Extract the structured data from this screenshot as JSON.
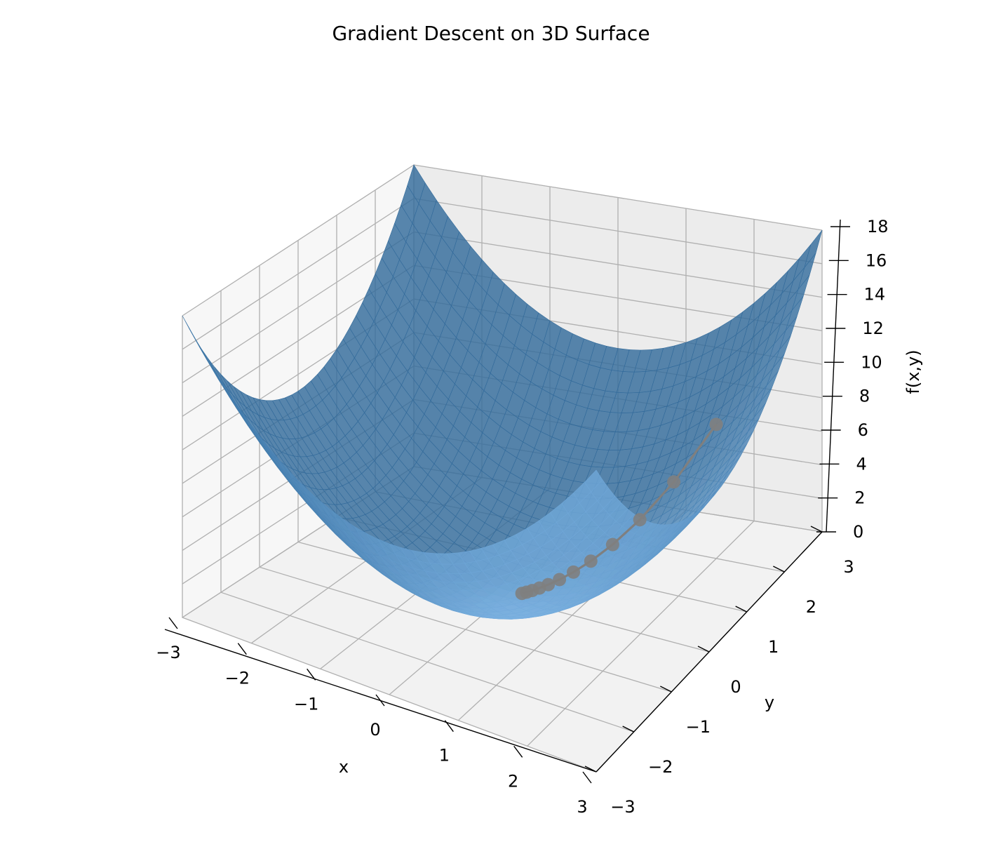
{
  "chart_data": {
    "type": "surface3d",
    "title": "Gradient Descent on 3D Surface",
    "xlabel": "x",
    "ylabel": "y",
    "zlabel": "f(x,y)",
    "function": "f(x,y) = x^2 + y^2",
    "xlim": [
      -3,
      3
    ],
    "ylim": [
      -3,
      3
    ],
    "zlim": [
      0,
      18
    ],
    "x_ticks": [
      -3,
      -2,
      -1,
      0,
      1,
      2,
      3
    ],
    "y_ticks": [
      -3,
      -2,
      -1,
      0,
      1,
      2,
      3
    ],
    "z_ticks": [
      0,
      2,
      4,
      6,
      8,
      10,
      12,
      14,
      16,
      18
    ],
    "x_tick_labels": [
      "−3",
      "−2",
      "−1",
      "0",
      "1",
      "2",
      "3"
    ],
    "y_tick_labels": [
      "−3",
      "−2",
      "−1",
      "0",
      "1",
      "2",
      "3"
    ],
    "z_tick_labels": [
      "0",
      "2",
      "4",
      "6",
      "8",
      "10",
      "12",
      "14",
      "16",
      "18"
    ],
    "grid": true,
    "surface_color": "#1f77b4",
    "path_color": "#7f7f7f",
    "path": {
      "x": [
        2.0,
        1.6,
        1.28,
        1.024,
        0.819,
        0.655,
        0.524,
        0.419,
        0.336,
        0.268,
        0.215,
        0.172
      ],
      "y": [
        2.0,
        1.6,
        1.28,
        1.024,
        0.819,
        0.655,
        0.524,
        0.419,
        0.336,
        0.268,
        0.215,
        0.172
      ],
      "z": [
        8.0,
        5.12,
        3.277,
        2.097,
        1.342,
        0.859,
        0.55,
        0.352,
        0.225,
        0.144,
        0.092,
        0.059
      ]
    }
  }
}
